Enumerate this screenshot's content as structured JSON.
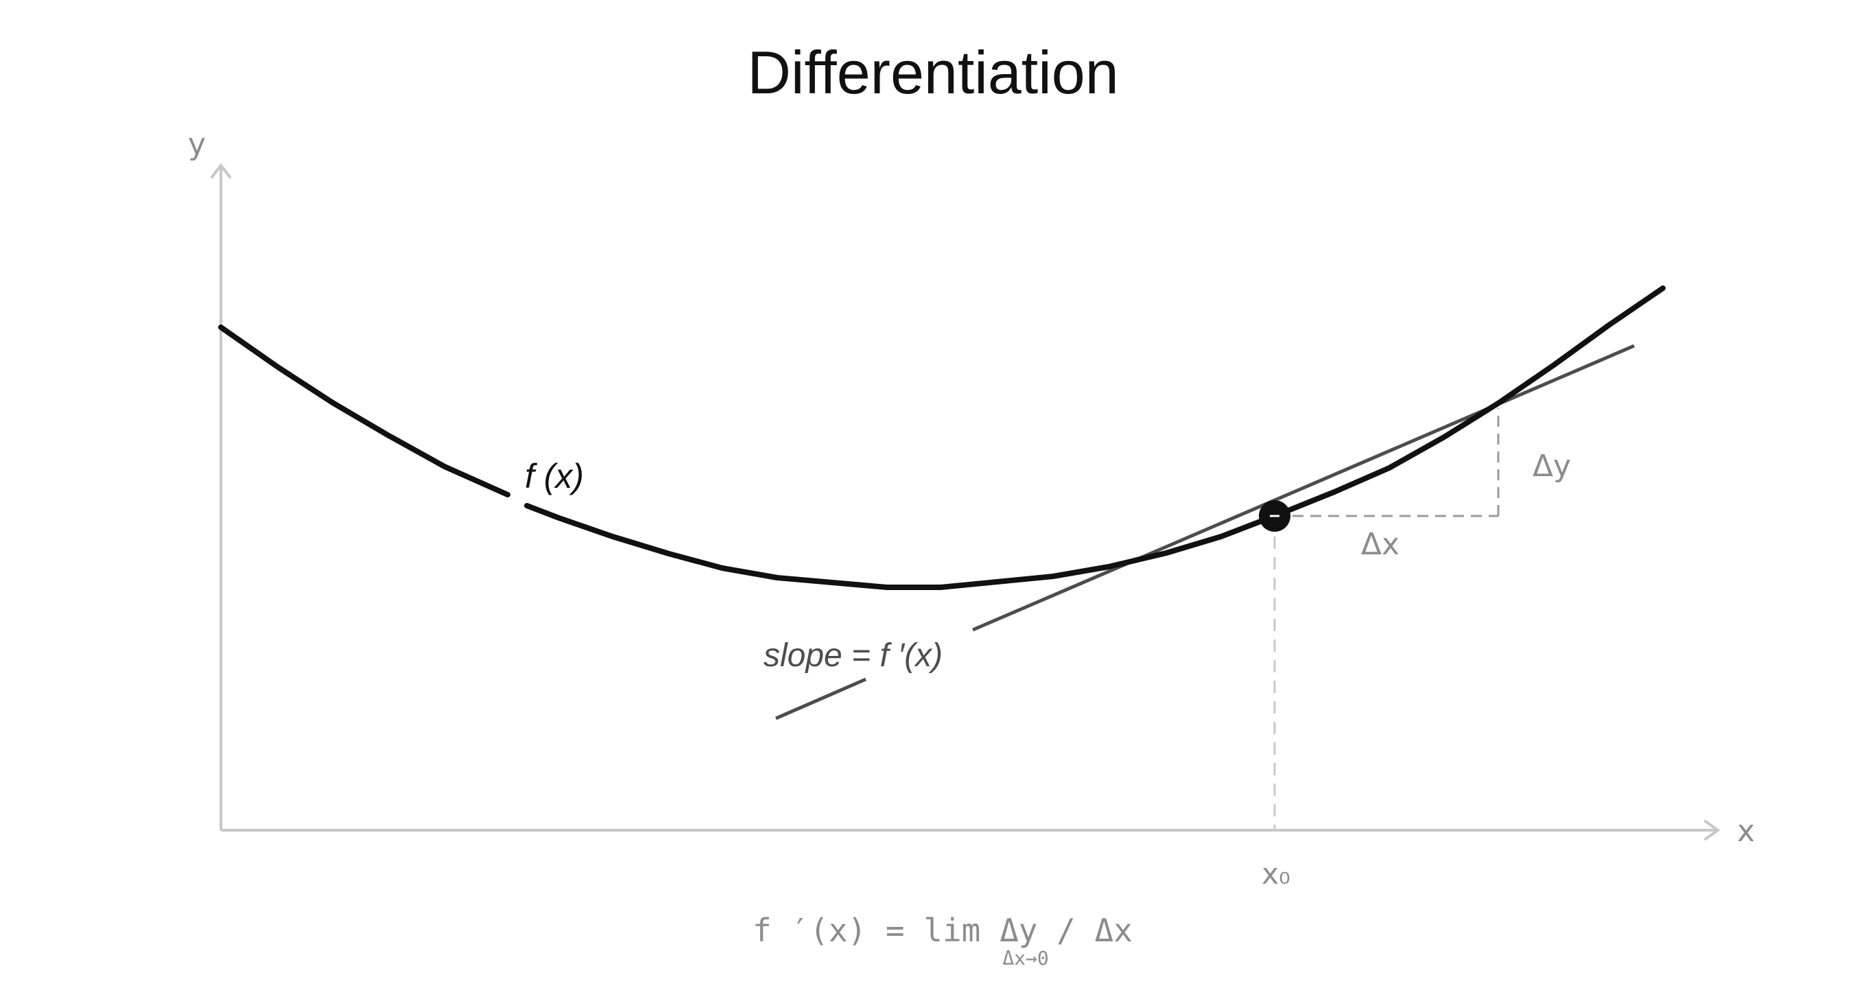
{
  "title": "Differentiation",
  "axes": {
    "x_label": "x",
    "y_label": "y"
  },
  "labels": {
    "function": "f (x)",
    "slope": "slope = f ′(x)",
    "delta_x": "Δx",
    "delta_y": "Δy",
    "point": "x₀"
  },
  "formula": {
    "main": "f ′(x) = lim Δy / Δx",
    "subscript": "Δx→0"
  },
  "colors": {
    "curve": "#111111",
    "tangent": "#4d4d4d",
    "axis": "#c8c8c8",
    "muted_text": "#8c8c8c",
    "guide": "#9a9a9a"
  }
}
